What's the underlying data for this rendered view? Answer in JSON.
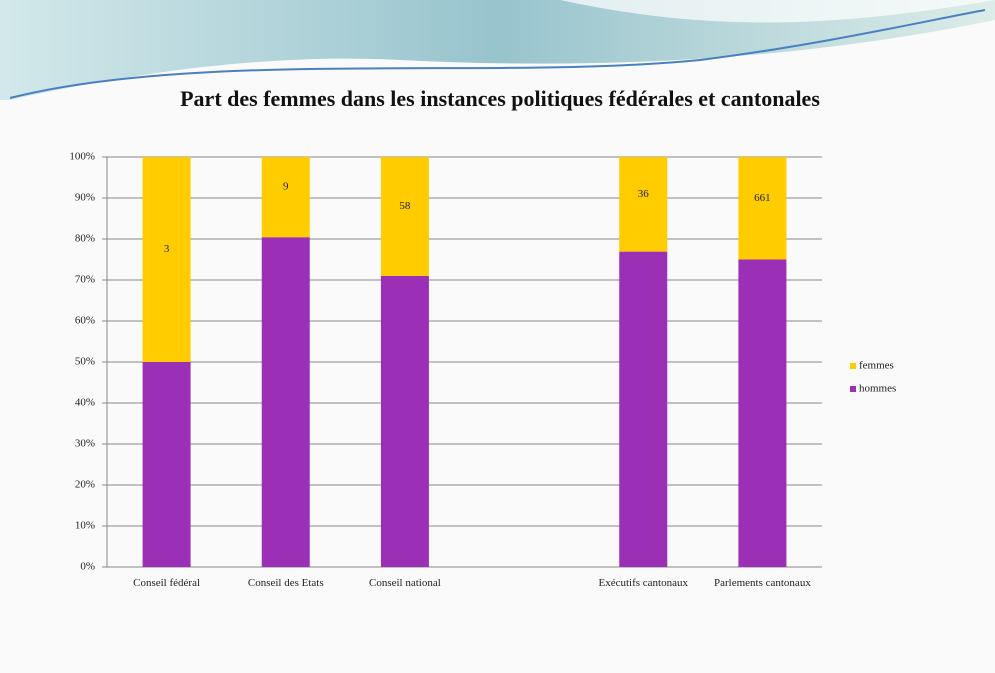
{
  "chart_data": {
    "type": "bar",
    "stacking": "percent",
    "title": "Part des femmes dans les instances politiques fédérales et cantonales",
    "categories": [
      "Conseil fédéral",
      "Conseil des Etats",
      "Conseil national",
      null,
      "Exécutifs cantonaux",
      "Parlements cantonaux"
    ],
    "series": [
      {
        "name": "femmes",
        "color": "#ffcc00",
        "data_labels": true,
        "values": [
          3,
          9,
          58,
          null,
          36,
          661
        ]
      },
      {
        "name": "hommes",
        "color": "#9b2fb5",
        "values": [
          3,
          37,
          142,
          null,
          120,
          1983
        ]
      }
    ],
    "ylim": [
      0,
      100
    ],
    "yticks": [
      {
        "value": 0,
        "label": "0%"
      },
      {
        "value": 10,
        "label": "10%"
      },
      {
        "value": 20,
        "label": "20%"
      },
      {
        "value": 30,
        "label": "30%"
      },
      {
        "value": 40,
        "label": "40%"
      },
      {
        "value": 50,
        "label": "50%"
      },
      {
        "value": 60,
        "label": "60%"
      },
      {
        "value": 70,
        "label": "70%"
      },
      {
        "value": 80,
        "label": "80%"
      },
      {
        "value": 90,
        "label": "90%"
      },
      {
        "value": 100,
        "label": "100%"
      }
    ],
    "grid": true,
    "legend": "right"
  }
}
